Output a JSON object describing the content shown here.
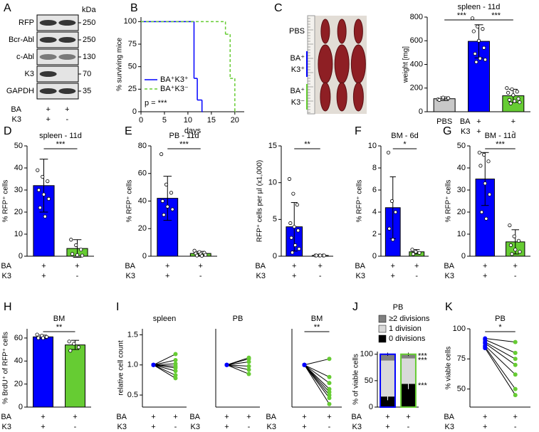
{
  "chart_data": [
    {
      "panel": "A",
      "type": "blot",
      "unit": "kDa",
      "rows": [
        {
          "name": "RFP",
          "marker": 250
        },
        {
          "name": "Bcr-Abl",
          "marker": 250
        },
        {
          "name": "c-Abl",
          "marker": 130
        },
        {
          "name": "K3",
          "marker": 70
        },
        {
          "name": "GAPDH",
          "marker": 35
        }
      ],
      "conditions": [
        {
          "name": "BA",
          "levels": [
            "+",
            "+"
          ]
        },
        {
          "name": "K3",
          "levels": [
            "+",
            "-"
          ]
        }
      ]
    },
    {
      "panel": "B",
      "type": "line",
      "ylabel": "% surviving mice",
      "xlabel": "days",
      "xlim": [
        0,
        22
      ],
      "xticks": [
        0,
        5,
        10,
        15,
        20
      ],
      "ylim": [
        0,
        105
      ],
      "yticks": [
        0,
        25,
        50,
        75,
        100
      ],
      "series": [
        {
          "name": "BA⁺K3⁺",
          "color": "#0000ff",
          "x": [
            0,
            11.3,
            12,
            13
          ],
          "values": [
            100,
            37,
            13,
            0
          ]
        },
        {
          "name": "BA⁺K3⁻",
          "color": "#66cc33",
          "dashed": true,
          "x": [
            0,
            18,
            19,
            20
          ],
          "values": [
            100,
            86,
            37,
            0
          ]
        }
      ],
      "legend": "lower left",
      "annotation": "p = ***"
    },
    {
      "panel": "C",
      "type": "photo",
      "labels": [
        [
          "PBS"
        ],
        [
          "BA⁺",
          "K3⁺"
        ],
        [
          "BA⁺",
          "K3⁻"
        ]
      ]
    },
    {
      "type": "bar",
      "title": "spleen - 11d",
      "ylabel": "weight [mg]",
      "categories": [
        "PBS",
        null,
        null
      ],
      "conditions": [
        {
          "name": "BA",
          "levels": [
            null,
            "+",
            "+"
          ]
        },
        {
          "name": "K3",
          "levels": [
            null,
            "+",
            "-"
          ]
        }
      ],
      "values": [
        110,
        595,
        135
      ],
      "errors": [
        15,
        140,
        55
      ],
      "colors": [
        "#c8c8c8",
        "#0000ff",
        "#66cc33"
      ],
      "points": [
        [
          105,
          120,
          115,
          100
        ],
        [
          790,
          720,
          700,
          680,
          600,
          540,
          490,
          450,
          440,
          420
        ],
        [
          200,
          190,
          170,
          160,
          140,
          110,
          100,
          90,
          80,
          70
        ]
      ],
      "ylim": [
        0,
        800
      ],
      "yticks": [
        0,
        200,
        400,
        600,
        800
      ],
      "significance": [
        "***",
        "***"
      ]
    },
    {
      "panel": "D",
      "type": "bar",
      "title": "spleen - 11d",
      "ylabel": "% RFP⁺ cells",
      "conditions": [
        {
          "name": "BA",
          "levels": [
            "+",
            "+"
          ]
        },
        {
          "name": "K3",
          "levels": [
            "+",
            "-"
          ]
        }
      ],
      "values": [
        32,
        3.5
      ],
      "errors": [
        12,
        4
      ],
      "colors": [
        "#0000ff",
        "#66cc33"
      ],
      "points": [
        [
          39,
          36,
          34,
          30,
          28,
          26,
          22,
          18
        ],
        [
          7.5,
          5,
          3,
          1,
          0.5,
          0.3
        ]
      ],
      "ylim": [
        0,
        50
      ],
      "yticks": [
        0,
        10,
        20,
        30,
        40,
        50
      ],
      "significance": [
        "***"
      ]
    },
    {
      "panel": "E",
      "type": "bar",
      "title": "PB - 11d",
      "ylabel": "% RFP⁺ cells",
      "conditions": [
        {
          "name": "BA",
          "levels": [
            "+",
            "+"
          ]
        },
        {
          "name": "K3",
          "levels": [
            "+",
            "-"
          ]
        }
      ],
      "values": [
        42,
        2
      ],
      "errors": [
        16,
        1.5
      ],
      "colors": [
        "#0000ff",
        "#66cc33"
      ],
      "points": [
        [
          74,
          52,
          46,
          40,
          36,
          34,
          30
        ],
        [
          4,
          3,
          2.5,
          2,
          1.5,
          1,
          0.5,
          0.3
        ]
      ],
      "ylim": [
        0,
        80
      ],
      "yticks": [
        0,
        20,
        40,
        60,
        80
      ],
      "significance": [
        "***"
      ]
    },
    {
      "type": "bar",
      "ylabel": "RFP⁺ cells per µl (x1,000)",
      "conditions": [
        {
          "name": "BA",
          "levels": [
            "+",
            "+"
          ]
        },
        {
          "name": "K3",
          "levels": [
            "+",
            "-"
          ]
        }
      ],
      "values": [
        4,
        0.1
      ],
      "errors": [
        3.3,
        0.1
      ],
      "colors": [
        "#0000ff",
        "#66cc33"
      ],
      "points": [
        [
          10.5,
          8.5,
          7,
          4.5,
          4,
          3.5,
          2.5,
          1.5,
          1,
          0.5
        ],
        [
          0.1,
          0.1,
          0.1,
          0.1,
          0.1,
          0.1
        ]
      ],
      "ylim": [
        0,
        15
      ],
      "yticks": [
        0,
        5,
        10,
        15
      ],
      "significance": [
        "**"
      ]
    },
    {
      "panel": "F",
      "type": "bar",
      "title": "BM - 6d",
      "ylabel": "% RFP⁺ cells",
      "conditions": [
        {
          "name": "BA",
          "levels": [
            "+",
            "+"
          ]
        },
        {
          "name": "K3",
          "levels": [
            "+",
            "-"
          ]
        }
      ],
      "values": [
        4.4,
        0.4
      ],
      "errors": [
        2.8,
        0.2
      ],
      "colors": [
        "#0000ff",
        "#66cc33"
      ],
      "points": [
        [
          9.4,
          5,
          4,
          2.5,
          1.5
        ],
        [
          0.6,
          0.4,
          0.3,
          0.2
        ]
      ],
      "ylim": [
        0,
        10
      ],
      "yticks": [
        0,
        2,
        4,
        6,
        8,
        10
      ],
      "significance": [
        "*"
      ]
    },
    {
      "panel": "G",
      "type": "bar",
      "title": "BM - 11d",
      "ylabel": "% RFP⁺ cells",
      "conditions": [
        {
          "name": "BA",
          "levels": [
            "+",
            "+"
          ]
        },
        {
          "name": "K3",
          "levels": [
            "+",
            "-"
          ]
        }
      ],
      "values": [
        35,
        6.5
      ],
      "errors": [
        12,
        5.5
      ],
      "colors": [
        "#0000ff",
        "#66cc33"
      ],
      "points": [
        [
          47,
          46,
          43,
          41,
          33,
          28,
          20,
          17
        ],
        [
          14,
          9,
          7,
          5,
          3,
          2,
          1
        ]
      ],
      "ylim": [
        0,
        50
      ],
      "yticks": [
        0,
        10,
        20,
        30,
        40,
        50
      ],
      "significance": [
        "***"
      ]
    },
    {
      "panel": "H",
      "type": "bar",
      "title": "BM",
      "ylabel": "% BrdU⁺ of RFP⁺ cells",
      "conditions": [
        {
          "name": "BA",
          "levels": [
            "+",
            "+"
          ]
        },
        {
          "name": "K3",
          "levels": [
            "+",
            "-"
          ]
        }
      ],
      "values": [
        61,
        54
      ],
      "errors": [
        1.5,
        4
      ],
      "colors": [
        "#0000ff",
        "#66cc33"
      ],
      "points": [
        [
          63,
          62,
          61,
          60,
          60
        ],
        [
          57,
          55,
          52,
          49
        ]
      ],
      "ylim": [
        0,
        68
      ],
      "yticks": [
        0,
        20,
        40,
        60
      ],
      "significance": [
        "**"
      ]
    },
    {
      "panel": "I",
      "type": "paired",
      "title": "spleen",
      "ylabel": "relative cell count",
      "conditions": [
        {
          "name": "BA",
          "levels": [
            "+",
            "+"
          ]
        },
        {
          "name": "K3",
          "levels": [
            "+",
            "-"
          ]
        }
      ],
      "left": [
        1,
        1,
        1,
        1,
        1,
        1,
        1,
        1
      ],
      "right": [
        1.18,
        1.08,
        1.02,
        0.98,
        0.95,
        0.9,
        0.83,
        0.78
      ],
      "colors": [
        "#0000ff",
        "#66cc33"
      ],
      "ylim": [
        0.3,
        1.6
      ],
      "yticks": [
        0.5,
        {
          "value": 1,
          "label": "1.0"
        },
        1.5
      ]
    },
    {
      "type": "paired",
      "title": "PB",
      "conditions": [
        {
          "name": "BA",
          "levels": [
            "+",
            "+"
          ]
        },
        {
          "name": "K3",
          "levels": [
            "+",
            "-"
          ]
        }
      ],
      "left": [
        1,
        1,
        1,
        1,
        1,
        1
      ],
      "right": [
        1.12,
        1.1,
        1.05,
        0.98,
        0.92,
        0.85
      ],
      "colors": [
        "#0000ff",
        "#66cc33"
      ],
      "ylim": [
        0.3,
        1.6
      ]
    },
    {
      "type": "paired",
      "title": "BM",
      "conditions": [
        {
          "name": "BA",
          "levels": [
            "+",
            "+"
          ]
        },
        {
          "name": "K3",
          "levels": [
            "+",
            "-"
          ]
        }
      ],
      "left": [
        1,
        1,
        1,
        1,
        1,
        1,
        1,
        1
      ],
      "right": [
        1.1,
        0.8,
        0.7,
        0.6,
        0.55,
        0.5,
        0.45,
        0.35
      ],
      "colors": [
        "#0000ff",
        "#66cc33"
      ],
      "ylim": [
        0.3,
        1.6
      ],
      "significance": [
        "**"
      ]
    },
    {
      "panel": "J",
      "type": "stacked_bar",
      "title": "PB",
      "ylabel": "% of viable cells",
      "conditions": [
        {
          "name": "BA",
          "levels": [
            "+",
            "+"
          ]
        },
        {
          "name": "K3",
          "levels": [
            "+",
            "-"
          ]
        }
      ],
      "series": [
        {
          "name": "0 divisions",
          "color": "#000000",
          "values": [
            20,
            44
          ],
          "errors": [
            7,
            10
          ]
        },
        {
          "name": "1 division",
          "color": "#d9d9d9",
          "values": [
            68,
            48
          ]
        },
        {
          "name": "≥2 divisions",
          "color": "#808080",
          "values": [
            12,
            8
          ],
          "errors": [
            3,
            3
          ]
        }
      ],
      "edge_colors": [
        "#0000ff",
        "#66cc33"
      ],
      "ylim": [
        0,
        105
      ],
      "yticks": [
        0,
        50,
        100
      ],
      "significance": [
        "***",
        "***",
        "***"
      ]
    },
    {
      "panel": "K",
      "type": "paired",
      "title": "PB",
      "ylabel": "% viable cells",
      "conditions": [
        {
          "name": "BA",
          "levels": [
            "+",
            "+"
          ]
        },
        {
          "name": "K3",
          "levels": [
            "+",
            "-"
          ]
        }
      ],
      "left": [
        92,
        91,
        89,
        88,
        86,
        85,
        84
      ],
      "right": [
        89,
        80,
        75,
        70,
        62,
        50,
        45
      ],
      "colors": [
        "#0000ff",
        "#66cc33"
      ],
      "ylim": [
        35,
        100
      ],
      "yticks": [
        50,
        75,
        100
      ],
      "significance": [
        "*"
      ]
    }
  ]
}
